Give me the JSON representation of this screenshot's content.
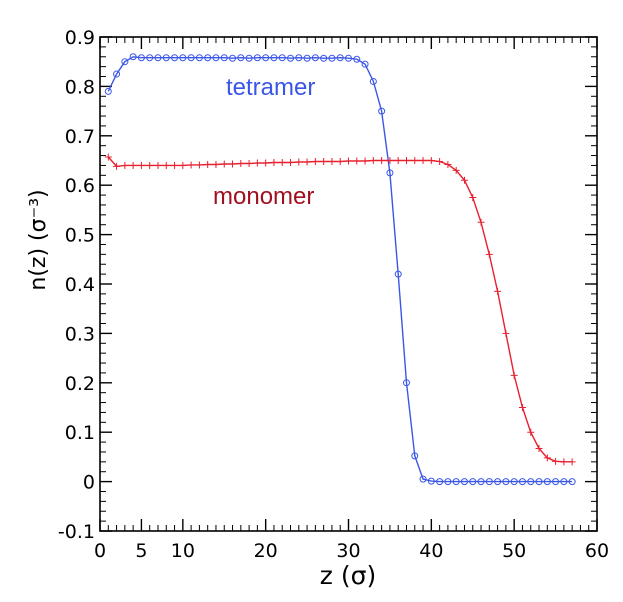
{
  "chart_data": {
    "type": "line",
    "xlabel": "z (σ)",
    "ylabel": "n(z) (σ⁻³)",
    "xlim": [
      0,
      60
    ],
    "ylim": [
      -0.1,
      0.9
    ],
    "x_ticks": [
      "0",
      "5",
      "10",
      "20",
      "30",
      "40",
      "50",
      "60"
    ],
    "x_tick_values": [
      0,
      5,
      10,
      20,
      30,
      40,
      50,
      60
    ],
    "y_ticks": [
      "-0.1",
      "0",
      "0.1",
      "0.2",
      "0.3",
      "0.4",
      "0.5",
      "0.6",
      "0.7",
      "0.8",
      "0.9"
    ],
    "y_tick_values": [
      -0.1,
      0,
      0.1,
      0.2,
      0.3,
      0.4,
      0.5,
      0.6,
      0.7,
      0.8,
      0.9
    ],
    "grid": false,
    "annotations": [
      {
        "text": "tetramer",
        "series": "tetramer"
      },
      {
        "text": "monomer",
        "series": "monomer"
      }
    ],
    "series": [
      {
        "name": "tetramer",
        "color": "#3a56e8",
        "marker": "circle",
        "x": [
          1,
          2,
          3,
          4,
          5,
          6,
          7,
          8,
          9,
          10,
          11,
          12,
          13,
          14,
          15,
          16,
          17,
          18,
          19,
          20,
          21,
          22,
          23,
          24,
          25,
          26,
          27,
          28,
          29,
          30,
          31,
          32,
          33,
          34,
          35,
          36,
          37,
          38,
          39,
          40,
          41,
          42,
          43,
          44,
          45,
          46,
          47,
          48,
          49,
          50,
          51,
          52,
          53,
          54,
          55,
          56,
          57
        ],
        "y": [
          0.79,
          0.825,
          0.85,
          0.86,
          0.858,
          0.858,
          0.858,
          0.858,
          0.858,
          0.858,
          0.858,
          0.858,
          0.858,
          0.858,
          0.858,
          0.857,
          0.858,
          0.857,
          0.858,
          0.858,
          0.858,
          0.858,
          0.857,
          0.858,
          0.857,
          0.858,
          0.857,
          0.857,
          0.858,
          0.857,
          0.855,
          0.845,
          0.81,
          0.75,
          0.625,
          0.42,
          0.2,
          0.052,
          0.005,
          0.001,
          0.0,
          0.0,
          0.0,
          0.0,
          0.0,
          0.0,
          0.0,
          0.0,
          0.0,
          0.0,
          0.0,
          0.0,
          0.0,
          0.0,
          0.0,
          0.0,
          0.0
        ]
      },
      {
        "name": "monomer",
        "color": "#e8202f",
        "marker": "plus",
        "x": [
          1,
          2,
          3,
          4,
          5,
          6,
          7,
          8,
          9,
          10,
          11,
          12,
          13,
          14,
          15,
          16,
          17,
          18,
          19,
          20,
          21,
          22,
          23,
          24,
          25,
          26,
          27,
          28,
          29,
          30,
          31,
          32,
          33,
          34,
          35,
          36,
          37,
          38,
          39,
          40,
          41,
          42,
          43,
          44,
          45,
          46,
          47,
          48,
          49,
          50,
          51,
          52,
          53,
          54,
          55,
          56,
          57
        ],
        "y": [
          0.657,
          0.638,
          0.64,
          0.64,
          0.64,
          0.64,
          0.64,
          0.64,
          0.64,
          0.64,
          0.641,
          0.641,
          0.642,
          0.642,
          0.643,
          0.643,
          0.644,
          0.644,
          0.645,
          0.645,
          0.646,
          0.646,
          0.646,
          0.647,
          0.647,
          0.648,
          0.648,
          0.648,
          0.648,
          0.649,
          0.649,
          0.649,
          0.65,
          0.65,
          0.65,
          0.65,
          0.65,
          0.65,
          0.65,
          0.65,
          0.648,
          0.642,
          0.63,
          0.61,
          0.575,
          0.525,
          0.46,
          0.385,
          0.3,
          0.215,
          0.15,
          0.1,
          0.067,
          0.048,
          0.041,
          0.04,
          0.04
        ]
      }
    ]
  }
}
